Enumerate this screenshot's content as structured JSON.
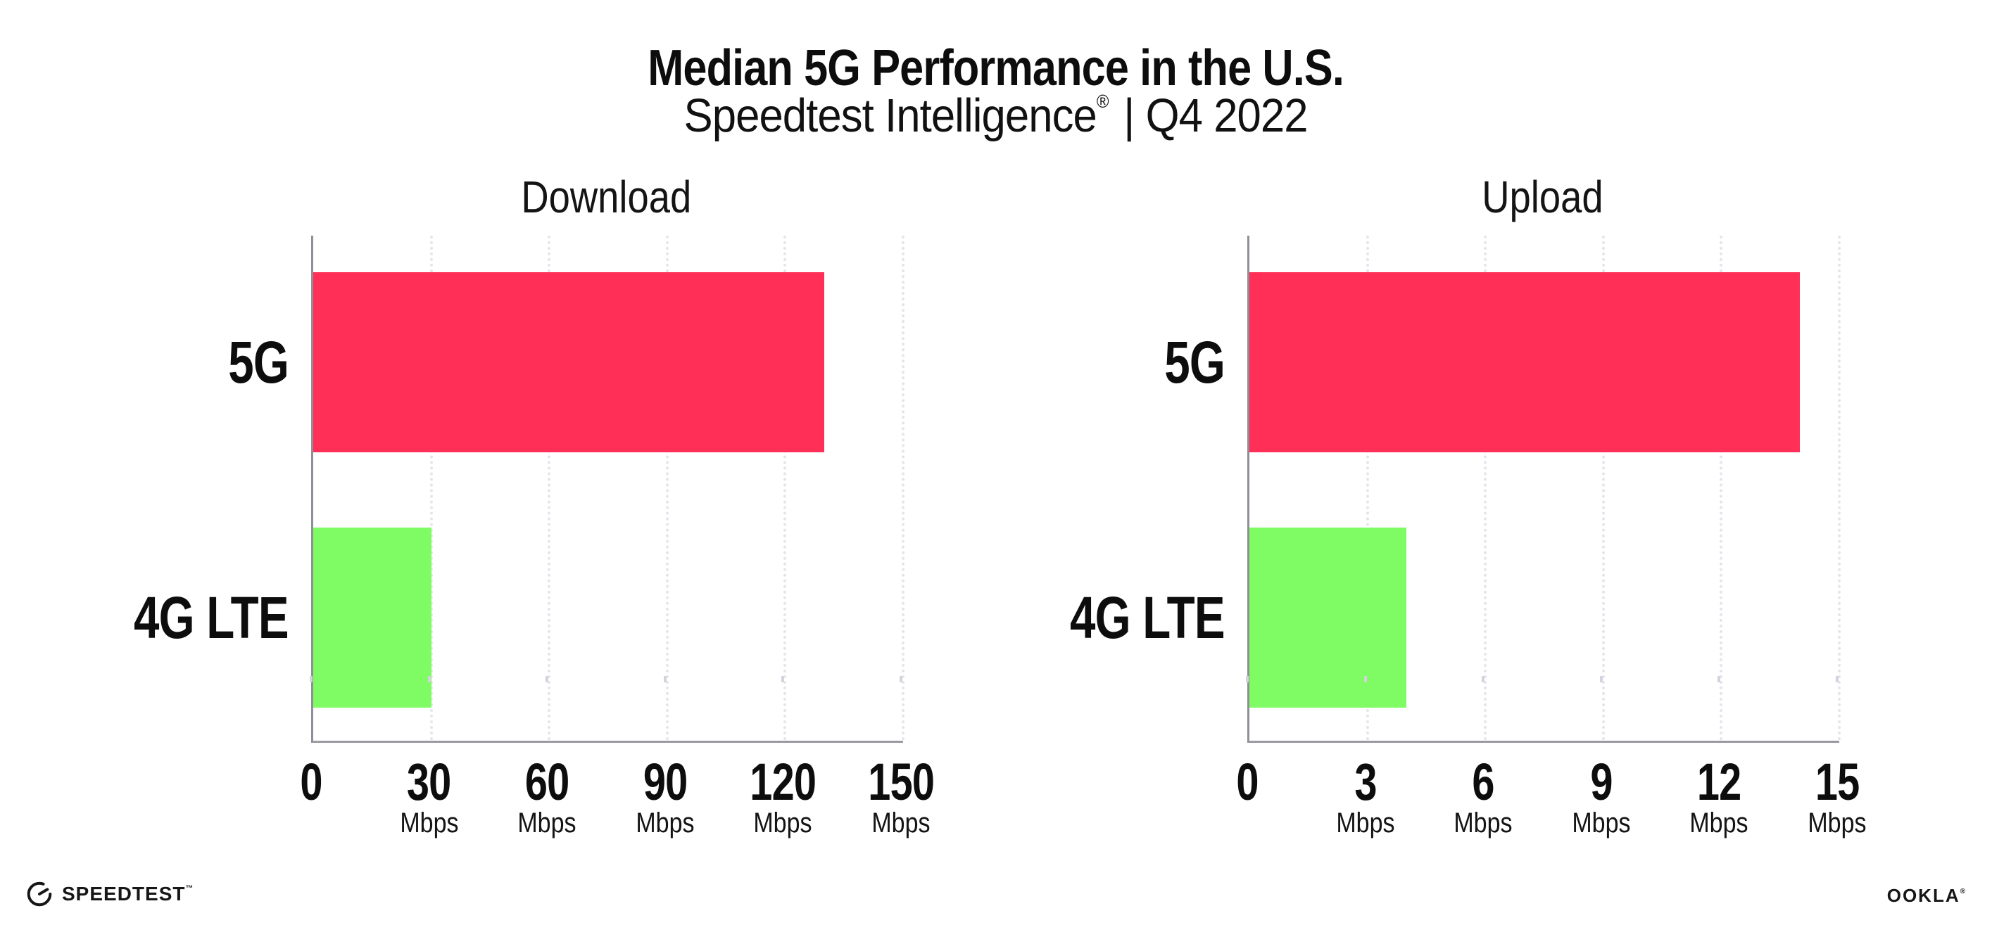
{
  "header": {
    "title": "Median 5G Performance in the U.S.",
    "subtitle": {
      "brand": "Speedtest Intelligence",
      "registered": "®",
      "tail": "| Q4 2022"
    }
  },
  "chart_data": [
    {
      "type": "bar",
      "orientation": "horizontal",
      "panel": "download",
      "title": "Download",
      "categories": [
        "5G",
        "4G LTE"
      ],
      "values": [
        130,
        30
      ],
      "unit": "Mbps",
      "xlim": [
        0,
        150
      ],
      "xticks": [
        0,
        30,
        60,
        90,
        120,
        150
      ],
      "bar_colors": [
        "#FF2F57",
        "#7FFB64"
      ],
      "grid": "vertical-dotted",
      "legend": false
    },
    {
      "type": "bar",
      "orientation": "horizontal",
      "panel": "upload",
      "title": "Upload",
      "categories": [
        "5G",
        "4G LTE"
      ],
      "values": [
        14,
        4
      ],
      "unit": "Mbps",
      "xlim": [
        0,
        15
      ],
      "xticks": [
        0,
        3,
        6,
        9,
        12,
        15
      ],
      "bar_colors": [
        "#FF2F57",
        "#7FFB64"
      ],
      "grid": "vertical-dotted",
      "legend": false
    }
  ],
  "styles": {
    "bar_5g_color": "#FF2F57",
    "bar_4g_color": "#7FFB64",
    "gridline_color": "#e4e4ec",
    "axis_color": "#8f8f99",
    "text_color": "#0d0d0d",
    "background": "#ffffff"
  },
  "footer": {
    "speedtest_label": "SPEEDTEST",
    "speedtest_mark": "™",
    "ookla_label": "OOKLA",
    "ookla_mark": "®"
  }
}
